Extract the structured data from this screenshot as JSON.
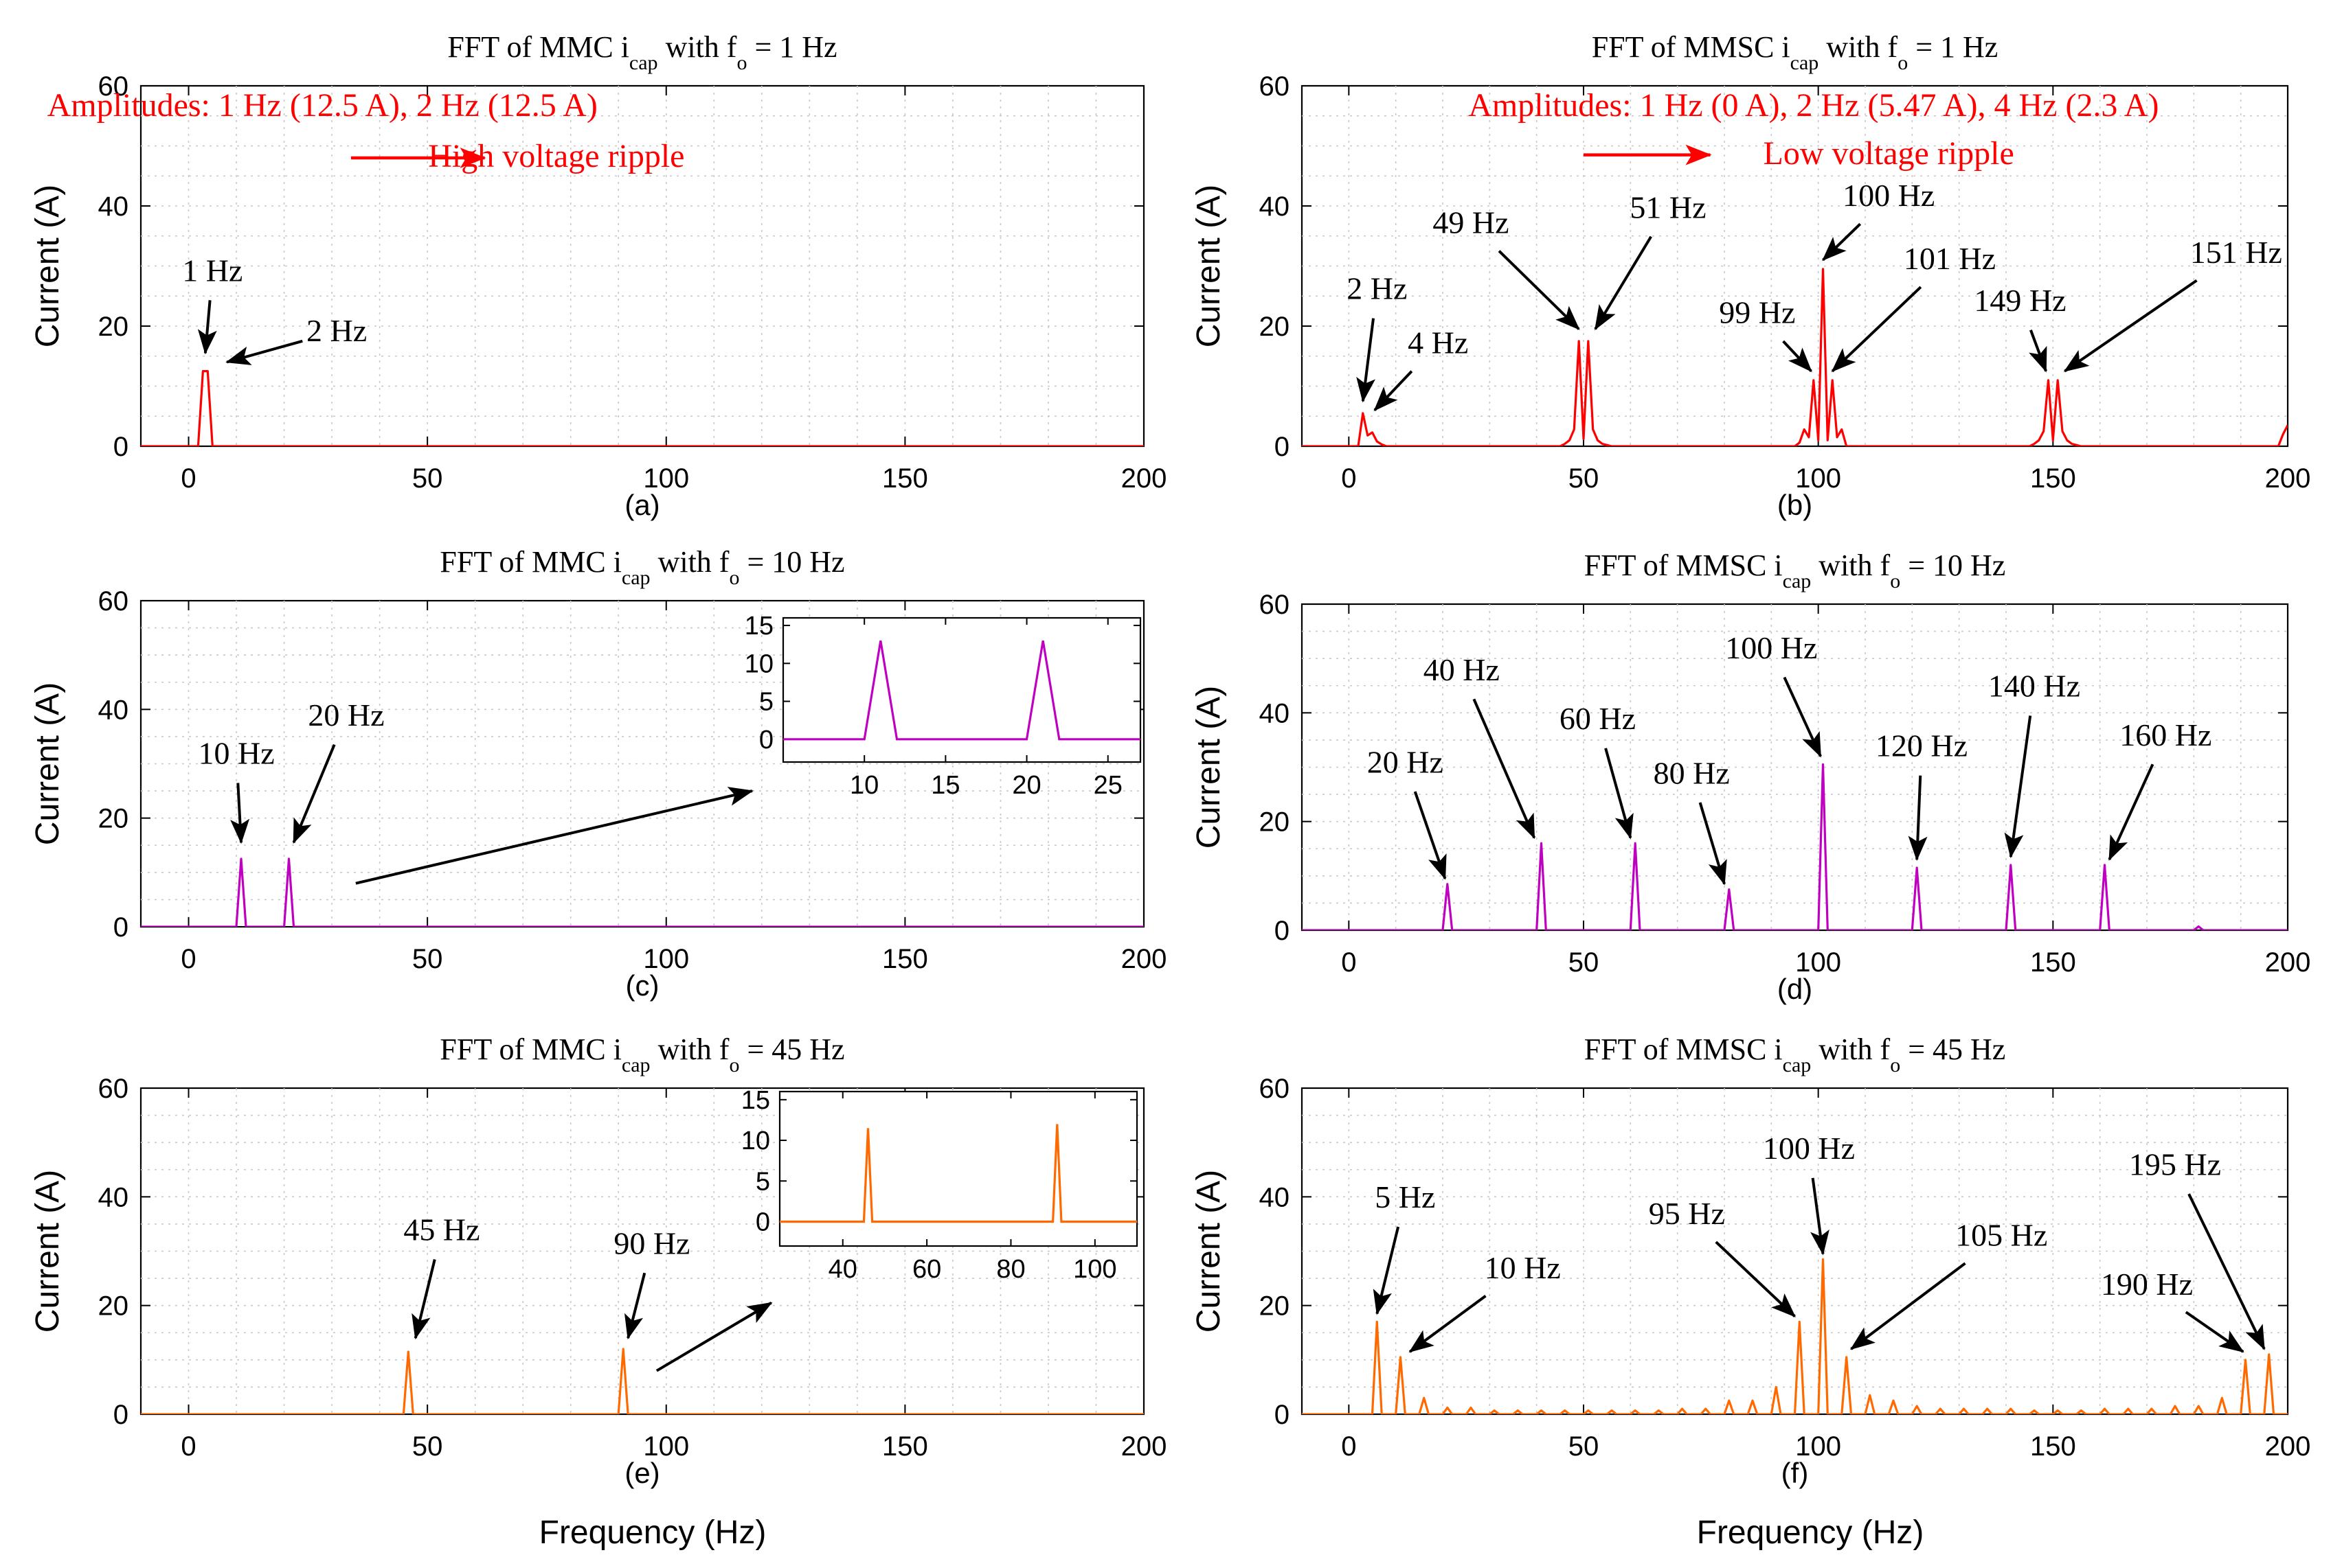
{
  "figure": {
    "xlabel": "Frequency (Hz)"
  },
  "chart_data": [
    {
      "id": "a",
      "type": "line",
      "subtitle": "(a)",
      "title": {
        "pre": "FFT of MMC i",
        "sub1": "cap",
        "mid": " with f",
        "sub2": "o",
        "post": " = 1 Hz"
      },
      "ylabel": "Current (A)",
      "xlabel": "",
      "xlim": [
        -10,
        200
      ],
      "ylim": [
        0,
        60
      ],
      "xticks": [
        0,
        50,
        100,
        150,
        200
      ],
      "yticks": [
        0,
        20,
        40,
        60
      ],
      "color": "#ff0000",
      "series": [
        {
          "name": "MMC i_cap",
          "x": [
            -10,
            2,
            3,
            4,
            5,
            200
          ],
          "y": [
            0,
            0,
            12.5,
            12.5,
            0,
            0
          ]
        }
      ],
      "annotations": [
        {
          "text": "1 Hz",
          "tx": 5,
          "ty": 27.5,
          "ax": 3.5,
          "ay": 15.5
        },
        {
          "text": "2 Hz",
          "tx": 31,
          "ty": 17.5,
          "ax": 8,
          "ay": 14
        }
      ],
      "notes": [
        {
          "kind": "text",
          "text": "Amplitudes: 1 Hz (12.5 A), 2 Hz (12.5 A)",
          "x": 28,
          "y": 55
        },
        {
          "kind": "arrow",
          "x1": 34,
          "x2": 62,
          "y": 48
        },
        {
          "kind": "text",
          "text": "High voltage ripple",
          "x": 77,
          "y": 46.5
        }
      ]
    },
    {
      "id": "b",
      "type": "line",
      "subtitle": "(b)",
      "title": {
        "pre": "FFT of MMSC i",
        "sub1": "cap",
        "mid": " with f",
        "sub2": "o",
        "post": " = 1 Hz"
      },
      "ylabel": "Current (A)",
      "xlabel": "",
      "xlim": [
        -10,
        200
      ],
      "ylim": [
        0,
        60
      ],
      "xticks": [
        0,
        50,
        100,
        150,
        200
      ],
      "yticks": [
        0,
        20,
        40,
        60
      ],
      "color": "#ff0000",
      "series": [
        {
          "name": "MMSC i_cap",
          "x": [
            -10,
            2,
            3,
            4,
            5,
            6,
            7,
            8,
            45,
            46,
            47,
            48,
            49,
            50,
            51,
            52,
            53,
            54,
            55,
            56,
            95,
            96,
            97,
            98,
            99,
            100,
            101,
            102,
            103,
            104,
            105,
            106,
            145,
            146,
            147,
            148,
            149,
            150,
            151,
            152,
            153,
            154,
            155,
            156,
            198,
            199,
            200
          ],
          "y": [
            0,
            0,
            5.5,
            1.8,
            2.3,
            0.8,
            0.3,
            0,
            0,
            0.4,
            1,
            2.8,
            17.5,
            1.2,
            17.5,
            2.8,
            1,
            0.4,
            0.2,
            0,
            0,
            0.6,
            2.8,
            1.5,
            11,
            1,
            29.5,
            1,
            11,
            1.5,
            2.8,
            0,
            0,
            0.4,
            1,
            2.5,
            11,
            1,
            11,
            2.5,
            1,
            0.4,
            0.2,
            0,
            0,
            2,
            3.5
          ]
        }
      ],
      "annotations": [
        {
          "text": "2 Hz",
          "tx": 6,
          "ty": 24.5,
          "ax": 3,
          "ay": 7.5
        },
        {
          "text": "4 Hz",
          "tx": 19,
          "ty": 15.5,
          "ax": 5.5,
          "ay": 6
        },
        {
          "text": "49 Hz",
          "tx": 26,
          "ty": 35.5,
          "ax": 49,
          "ay": 19.5
        },
        {
          "text": "51 Hz",
          "tx": 68,
          "ty": 38,
          "ax": 52.5,
          "ay": 19.5
        },
        {
          "text": "100 Hz",
          "tx": 115,
          "ty": 40,
          "ax": 101,
          "ay": 31
        },
        {
          "text": "99 Hz",
          "tx": 87,
          "ty": 20.5,
          "ax": 98.5,
          "ay": 12.5
        },
        {
          "text": "101 Hz",
          "tx": 128,
          "ty": 29.5,
          "ax": 103,
          "ay": 12.5
        },
        {
          "text": "149 Hz",
          "tx": 143,
          "ty": 22.5,
          "ax": 148.5,
          "ay": 12.5
        },
        {
          "text": "151 Hz",
          "tx": 189,
          "ty": 30.5,
          "ax": 152.5,
          "ay": 12.5
        }
      ],
      "notes": [
        {
          "kind": "text",
          "text": "Amplitudes: 1 Hz (0 A), 2 Hz (5.47 A), 4 Hz (2.3 A)",
          "x": 99,
          "y": 55
        },
        {
          "kind": "arrow",
          "x1": 50,
          "x2": 77,
          "y": 48.5
        },
        {
          "kind": "text",
          "text": "Low voltage ripple",
          "x": 115,
          "y": 47
        }
      ]
    },
    {
      "id": "c",
      "type": "line",
      "subtitle": "(c)",
      "title": {
        "pre": "FFT of MMC i",
        "sub1": "cap",
        "mid": " with f",
        "sub2": "o",
        "post": " = 10 Hz"
      },
      "ylabel": "Current (A)",
      "xlabel": "",
      "xlim": [
        -10,
        200
      ],
      "ylim": [
        0,
        60
      ],
      "xticks": [
        0,
        50,
        100,
        150,
        200
      ],
      "yticks": [
        0,
        20,
        40,
        60
      ],
      "color": "#c000c0",
      "series": [
        {
          "name": "MMC i_cap",
          "x": [
            -10,
            10,
            11,
            12,
            20,
            21,
            22,
            200
          ],
          "y": [
            0,
            0,
            12.5,
            0,
            0,
            12.5,
            0,
            0
          ]
        }
      ],
      "annotations": [
        {
          "text": "10 Hz",
          "tx": 10,
          "ty": 30,
          "ax": 11,
          "ay": 15.5
        },
        {
          "text": "20 Hz",
          "tx": 33,
          "ty": 37,
          "ax": 22,
          "ay": 15.5
        },
        {
          "text": "",
          "tx": 35,
          "ty": 8,
          "ax": 118,
          "ay": 25
        }
      ],
      "inset": {
        "xlim": [
          5,
          27
        ],
        "ylim": [
          -3,
          16
        ],
        "xticks": [
          10,
          15,
          20,
          25
        ],
        "yticks": [
          0,
          5,
          10,
          15
        ],
        "x": [
          5,
          10,
          11,
          12,
          20,
          21,
          22,
          27
        ],
        "y": [
          0,
          0,
          13,
          0,
          0,
          13,
          0,
          0
        ]
      }
    },
    {
      "id": "d",
      "type": "line",
      "subtitle": "(d)",
      "title": {
        "pre": "FFT of MMSC i",
        "sub1": "cap",
        "mid": " with f",
        "sub2": "o",
        "post": " = 10 Hz"
      },
      "ylabel": "Current (A)",
      "xlabel": "",
      "xlim": [
        -10,
        200
      ],
      "ylim": [
        0,
        60
      ],
      "xticks": [
        0,
        50,
        100,
        150,
        200
      ],
      "yticks": [
        0,
        20,
        40,
        60
      ],
      "color": "#c000c0",
      "series": [
        {
          "name": "MMSC i_cap",
          "x": [
            -10,
            20,
            21,
            22,
            40,
            41,
            42,
            60,
            61,
            62,
            80,
            81,
            82,
            100,
            101,
            102,
            120,
            121,
            122,
            140,
            141,
            142,
            160,
            161,
            162,
            180,
            181,
            182,
            200
          ],
          "y": [
            0,
            0,
            8.5,
            0,
            0,
            16,
            0,
            0,
            16,
            0,
            0,
            7.5,
            0,
            0,
            30.5,
            0,
            0,
            11.5,
            0,
            0,
            12,
            0,
            0,
            12,
            0,
            0,
            0.7,
            0,
            0
          ]
        }
      ],
      "annotations": [
        {
          "text": "20 Hz",
          "tx": 12,
          "ty": 29,
          "ax": 20.5,
          "ay": 9.5
        },
        {
          "text": "40 Hz",
          "tx": 24,
          "ty": 46,
          "ax": 39.5,
          "ay": 17
        },
        {
          "text": "60 Hz",
          "tx": 53,
          "ty": 37,
          "ax": 60,
          "ay": 17
        },
        {
          "text": "80 Hz",
          "tx": 73,
          "ty": 27,
          "ax": 80,
          "ay": 8.5
        },
        {
          "text": "100 Hz",
          "tx": 90,
          "ty": 50,
          "ax": 100.5,
          "ay": 32
        },
        {
          "text": "120 Hz",
          "tx": 122,
          "ty": 32,
          "ax": 121,
          "ay": 13
        },
        {
          "text": "140 Hz",
          "tx": 146,
          "ty": 43,
          "ax": 141,
          "ay": 13.5
        },
        {
          "text": "160 Hz",
          "tx": 174,
          "ty": 34,
          "ax": 162,
          "ay": 13
        }
      ]
    },
    {
      "id": "e",
      "type": "line",
      "subtitle": "(e)",
      "title": {
        "pre": "FFT of MMC i",
        "sub1": "cap",
        "mid": " with f",
        "sub2": "o",
        "post": " = 45 Hz"
      },
      "ylabel": "Current (A)",
      "xlabel": "Frequency (Hz)",
      "xlim": [
        -10,
        200
      ],
      "ylim": [
        0,
        60
      ],
      "xticks": [
        0,
        50,
        100,
        150,
        200
      ],
      "yticks": [
        0,
        20,
        40,
        60
      ],
      "color": "#ff6a00",
      "series": [
        {
          "name": "MMC i_cap",
          "x": [
            -10,
            45,
            46,
            47,
            90,
            91,
            92,
            200
          ],
          "y": [
            0,
            0,
            11.5,
            0,
            0,
            12,
            0,
            0
          ]
        }
      ],
      "annotations": [
        {
          "text": "45 Hz",
          "tx": 53,
          "ty": 32,
          "ax": 47.5,
          "ay": 14
        },
        {
          "text": "90 Hz",
          "tx": 97,
          "ty": 29.5,
          "ax": 92,
          "ay": 14
        },
        {
          "text": "",
          "tx": 98,
          "ty": 8,
          "ax": 122,
          "ay": 20.5
        }
      ],
      "inset": {
        "xlim": [
          25,
          110
        ],
        "ylim": [
          -3,
          16
        ],
        "xticks": [
          40,
          60,
          80,
          100
        ],
        "yticks": [
          0,
          5,
          10,
          15
        ],
        "x": [
          25,
          45,
          46,
          47,
          90,
          91,
          92,
          110
        ],
        "y": [
          0,
          0,
          11.5,
          0,
          0,
          12,
          0,
          0
        ]
      }
    },
    {
      "id": "f",
      "type": "line",
      "subtitle": "(f)",
      "title": {
        "pre": "FFT of MMSC i",
        "sub1": "cap",
        "mid": " with f",
        "sub2": "o",
        "post": " = 45 Hz"
      },
      "ylabel": "Current (A)",
      "xlabel": "Frequency (Hz)",
      "xlim": [
        -10,
        200
      ],
      "ylim": [
        0,
        60
      ],
      "xticks": [
        0,
        50,
        100,
        150,
        200
      ],
      "yticks": [
        0,
        20,
        40,
        60
      ],
      "color": "#ff6a00",
      "series": [
        {
          "name": "MMSC i_cap",
          "x": [
            -10,
            5,
            6,
            7,
            10,
            11,
            12,
            15,
            16,
            17,
            20,
            21,
            22,
            25,
            26,
            27,
            30,
            31,
            32,
            35,
            36,
            37,
            40,
            41,
            42,
            45,
            46,
            47,
            50,
            51,
            52,
            55,
            56,
            57,
            60,
            61,
            62,
            65,
            66,
            67,
            70,
            71,
            72,
            75,
            76,
            77,
            80,
            81,
            82,
            85,
            86,
            87,
            90,
            91,
            92,
            95,
            96,
            97,
            100,
            101,
            102,
            105,
            106,
            107,
            110,
            111,
            112,
            115,
            116,
            117,
            120,
            121,
            122,
            125,
            126,
            127,
            130,
            131,
            132,
            135,
            136,
            137,
            140,
            141,
            142,
            145,
            146,
            147,
            150,
            151,
            152,
            155,
            156,
            157,
            160,
            161,
            162,
            165,
            166,
            167,
            170,
            171,
            172,
            175,
            176,
            177,
            180,
            181,
            182,
            185,
            186,
            187,
            190,
            191,
            192,
            195,
            196,
            197,
            200
          ],
          "y": [
            0,
            0,
            17,
            0,
            0,
            10.5,
            0,
            0,
            3,
            0,
            0,
            1.2,
            0,
            0,
            1.2,
            0,
            0,
            0.7,
            0,
            0,
            0.7,
            0,
            0,
            0.7,
            0,
            0,
            0.7,
            0,
            0,
            0.7,
            0,
            0,
            0.7,
            0,
            0,
            0.7,
            0,
            0,
            0.7,
            0,
            0,
            1,
            0,
            0,
            1,
            0,
            0,
            2.5,
            0,
            0,
            2.5,
            0,
            0,
            5,
            0,
            0,
            17,
            0,
            0,
            28.5,
            0,
            0,
            10.5,
            0,
            0,
            3.5,
            0,
            0,
            2.5,
            0,
            0,
            1.5,
            0,
            0,
            1,
            0,
            0,
            1,
            0,
            0,
            1,
            0,
            0,
            1,
            0,
            0,
            0.7,
            0,
            0,
            0.7,
            0,
            0,
            0.7,
            0,
            0,
            1,
            0,
            0,
            1,
            0,
            0,
            1,
            0,
            0,
            1.5,
            0,
            0,
            1.5,
            0,
            0,
            3,
            0,
            0,
            10,
            0,
            0,
            11,
            0,
            0
          ]
        }
      ],
      "annotations": [
        {
          "text": "5 Hz",
          "tx": 12,
          "ty": 38,
          "ax": 6,
          "ay": 18.5
        },
        {
          "text": "10 Hz",
          "tx": 37,
          "ty": 25,
          "ax": 13,
          "ay": 11.5
        },
        {
          "text": "95 Hz",
          "tx": 72,
          "ty": 35,
          "ax": 95,
          "ay": 18
        },
        {
          "text": "100 Hz",
          "tx": 98,
          "ty": 47,
          "ax": 101,
          "ay": 29.5
        },
        {
          "text": "105 Hz",
          "tx": 139,
          "ty": 31,
          "ax": 107,
          "ay": 12
        },
        {
          "text": "190 Hz",
          "tx": 170,
          "ty": 22,
          "ax": 190.5,
          "ay": 11.5
        },
        {
          "text": "195 Hz",
          "tx": 176,
          "ty": 44,
          "ax": 195,
          "ay": 12
        }
      ]
    }
  ]
}
